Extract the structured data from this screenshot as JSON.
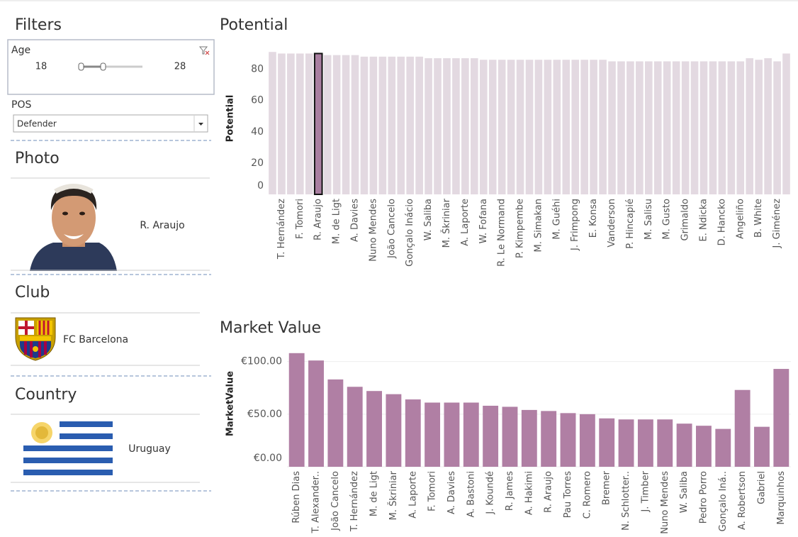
{
  "sidebar": {
    "filters_title": "Filters",
    "age": {
      "label": "Age",
      "min": 18,
      "max": 28
    },
    "pos": {
      "label": "POS",
      "value": "Defender"
    },
    "photo": {
      "title": "Photo",
      "name": "R. Araujo"
    },
    "club": {
      "title": "Club",
      "name": "FC Barcelona"
    },
    "country": {
      "title": "Country",
      "name": "Uruguay"
    }
  },
  "chart_data": [
    {
      "type": "bar",
      "title": "Potential",
      "y_label": "Potential",
      "categories": [
        null,
        "T. Hernández",
        null,
        "F. Tomori",
        null,
        "R. Araujo",
        null,
        "M. de Ligt",
        null,
        "A. Davies",
        null,
        "Nuno Mendes",
        null,
        "João Cancelo",
        null,
        "Gonçalo Inácio",
        null,
        "W. Saliba",
        null,
        "M. Škriniar",
        null,
        "A. Laporte",
        null,
        "W. Fofana",
        null,
        "R. Le Normand",
        null,
        "P. Kimpembe",
        null,
        "M. Simakan",
        null,
        "M. Guéhi",
        null,
        "J. Frimpong",
        null,
        "E. Konsa",
        null,
        "Vanderson",
        null,
        "P. Hincapié",
        null,
        "M. Salisu",
        null,
        "M. Gusto",
        null,
        "Grimaldo",
        null,
        "E. Ndicka",
        null,
        "D. Hancko",
        null,
        "Angeliño",
        null,
        "B. White",
        null,
        "J. Giménez",
        null
      ],
      "values": [
        91,
        90,
        90,
        90,
        90,
        90,
        89,
        89,
        89,
        89,
        88,
        88,
        88,
        88,
        88,
        88,
        88,
        87,
        87,
        87,
        87,
        87,
        87,
        86,
        86,
        86,
        86,
        86,
        86,
        86,
        86,
        86,
        86,
        86,
        86,
        86,
        86,
        85,
        85,
        85,
        85,
        85,
        85,
        85,
        85,
        85,
        85,
        85,
        85,
        85,
        85,
        85,
        87,
        86,
        87,
        85,
        90
      ],
      "color": "#e3d9e1",
      "selected": "R. Araujo",
      "selected_color": "#a97ea0",
      "ylim": [
        0,
        97
      ],
      "yticks": [
        0,
        20,
        40,
        60,
        80
      ],
      "grid": false
    },
    {
      "type": "bar",
      "title": "Market Value",
      "y_label": "MarketValue",
      "categories": [
        "Rúben Dias",
        "T. Alexander..",
        "João Cancelo",
        "T. Hernández",
        "M. de Ligt",
        "M. Škriniar",
        "A. Laporte",
        "F. Tomori",
        "A. Davies",
        "A. Bastoni",
        "J. Koundé",
        "R. James",
        "A. Hakimi",
        "R. Araujo",
        "Pau Torres",
        "C. Romero",
        "Bremer",
        "N. Schlotter..",
        "J. Timber",
        "Nuno Mendes",
        "W. Saliba",
        "Pedro Porro",
        "Gonçalo Iná..",
        "A. Robertson",
        "Gabriel",
        "Marquinhos"
      ],
      "values": [
        108,
        101,
        83,
        76,
        72,
        69,
        64,
        61,
        61,
        61,
        58,
        57,
        54,
        53,
        51,
        50,
        46,
        45,
        45,
        45,
        41,
        39,
        36,
        73,
        38,
        93
      ],
      "color": "#b07fa4",
      "ylim": [
        0,
        120
      ],
      "yticks": [
        {
          "value": 0,
          "label": "€0.00"
        },
        {
          "value": 50,
          "label": "€50.00"
        },
        {
          "value": 100,
          "label": "€100.00"
        }
      ],
      "grid": true
    }
  ]
}
